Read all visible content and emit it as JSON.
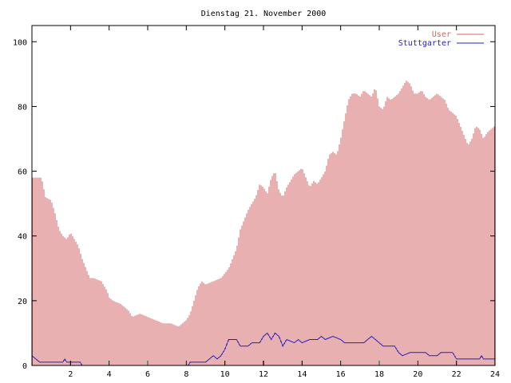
{
  "chart_data": {
    "type": "bar",
    "title": "Dienstag 21. November 2000",
    "xlabel": "",
    "ylabel": "",
    "xlim": [
      0,
      24
    ],
    "ylim": [
      0,
      105
    ],
    "x_ticks": [
      2,
      4,
      6,
      8,
      10,
      12,
      14,
      16,
      18,
      20,
      22,
      24
    ],
    "y_ticks": [
      0,
      20,
      40,
      60,
      80,
      100
    ],
    "x_tick_labels": [
      "2",
      "4",
      "6",
      "8",
      "10",
      "12",
      "14",
      "16",
      "18",
      "20",
      "22",
      "24"
    ],
    "y_tick_labels": [
      "0",
      "20",
      "40",
      "60",
      "80",
      "100"
    ],
    "legend_position": "top-right",
    "grid": false,
    "series": [
      {
        "name": "User",
        "style": "impulses",
        "color": "#d06060",
        "points": [
          [
            0.0,
            58
          ],
          [
            0.5,
            58
          ],
          [
            0.7,
            52
          ],
          [
            1.0,
            51
          ],
          [
            1.2,
            47
          ],
          [
            1.4,
            42
          ],
          [
            1.6,
            40
          ],
          [
            1.8,
            39
          ],
          [
            2.0,
            41
          ],
          [
            2.2,
            39
          ],
          [
            2.4,
            37
          ],
          [
            2.6,
            33
          ],
          [
            2.8,
            30
          ],
          [
            3.0,
            27
          ],
          [
            3.2,
            27
          ],
          [
            3.6,
            26
          ],
          [
            3.9,
            23
          ],
          [
            4.0,
            21
          ],
          [
            4.2,
            20
          ],
          [
            4.6,
            19
          ],
          [
            5.0,
            17
          ],
          [
            5.2,
            15
          ],
          [
            5.6,
            16
          ],
          [
            6.0,
            15
          ],
          [
            6.4,
            14
          ],
          [
            6.8,
            13
          ],
          [
            7.2,
            13
          ],
          [
            7.6,
            12
          ],
          [
            7.8,
            13
          ],
          [
            8.0,
            14
          ],
          [
            8.2,
            16
          ],
          [
            8.4,
            20
          ],
          [
            8.6,
            24
          ],
          [
            8.8,
            26
          ],
          [
            9.0,
            25
          ],
          [
            9.4,
            26
          ],
          [
            9.8,
            27
          ],
          [
            10.2,
            30
          ],
          [
            10.6,
            36
          ],
          [
            10.8,
            42
          ],
          [
            11.0,
            45
          ],
          [
            11.2,
            48
          ],
          [
            11.4,
            50
          ],
          [
            11.6,
            52
          ],
          [
            11.8,
            56
          ],
          [
            12.0,
            55
          ],
          [
            12.2,
            53
          ],
          [
            12.4,
            58
          ],
          [
            12.6,
            60
          ],
          [
            12.8,
            54
          ],
          [
            13.0,
            52
          ],
          [
            13.2,
            55
          ],
          [
            13.4,
            57
          ],
          [
            13.6,
            59
          ],
          [
            13.8,
            60
          ],
          [
            14.0,
            61
          ],
          [
            14.2,
            58
          ],
          [
            14.4,
            55
          ],
          [
            14.6,
            57
          ],
          [
            14.8,
            56
          ],
          [
            15.0,
            58
          ],
          [
            15.2,
            60
          ],
          [
            15.4,
            65
          ],
          [
            15.6,
            66
          ],
          [
            15.8,
            65
          ],
          [
            16.0,
            70
          ],
          [
            16.2,
            76
          ],
          [
            16.4,
            82
          ],
          [
            16.6,
            84
          ],
          [
            16.8,
            84
          ],
          [
            17.0,
            83
          ],
          [
            17.2,
            85
          ],
          [
            17.4,
            84
          ],
          [
            17.6,
            83
          ],
          [
            17.8,
            86
          ],
          [
            18.0,
            80
          ],
          [
            18.2,
            79
          ],
          [
            18.4,
            83
          ],
          [
            18.6,
            82
          ],
          [
            18.8,
            83
          ],
          [
            19.0,
            84
          ],
          [
            19.2,
            86
          ],
          [
            19.4,
            88
          ],
          [
            19.6,
            87
          ],
          [
            19.8,
            84
          ],
          [
            20.0,
            84
          ],
          [
            20.2,
            85
          ],
          [
            20.4,
            83
          ],
          [
            20.6,
            82
          ],
          [
            20.8,
            83
          ],
          [
            21.0,
            84
          ],
          [
            21.2,
            83
          ],
          [
            21.4,
            82
          ],
          [
            21.6,
            79
          ],
          [
            21.8,
            78
          ],
          [
            22.0,
            77
          ],
          [
            22.2,
            74
          ],
          [
            22.4,
            71
          ],
          [
            22.6,
            68
          ],
          [
            22.8,
            70
          ],
          [
            23.0,
            74
          ],
          [
            23.2,
            73
          ],
          [
            23.4,
            70
          ],
          [
            23.6,
            72
          ],
          [
            23.8,
            73
          ],
          [
            24.0,
            74
          ]
        ]
      },
      {
        "name": "Stuttgarter",
        "style": "line",
        "color": "#2020c0",
        "points": [
          [
            0.0,
            3
          ],
          [
            0.2,
            2
          ],
          [
            0.4,
            1
          ],
          [
            1.6,
            1
          ],
          [
            1.7,
            2
          ],
          [
            1.8,
            1
          ],
          [
            2.5,
            1
          ],
          [
            2.6,
            0
          ],
          [
            8.1,
            0
          ],
          [
            8.2,
            1
          ],
          [
            9.0,
            1
          ],
          [
            9.2,
            2
          ],
          [
            9.4,
            3
          ],
          [
            9.6,
            2
          ],
          [
            9.8,
            3
          ],
          [
            10.0,
            5
          ],
          [
            10.2,
            8
          ],
          [
            10.6,
            8
          ],
          [
            10.8,
            6
          ],
          [
            11.2,
            6
          ],
          [
            11.4,
            7
          ],
          [
            11.8,
            7
          ],
          [
            12.0,
            9
          ],
          [
            12.2,
            10
          ],
          [
            12.4,
            8
          ],
          [
            12.6,
            10
          ],
          [
            12.8,
            9
          ],
          [
            13.0,
            6
          ],
          [
            13.2,
            8
          ],
          [
            13.6,
            7
          ],
          [
            13.8,
            8
          ],
          [
            14.0,
            7
          ],
          [
            14.4,
            8
          ],
          [
            14.8,
            8
          ],
          [
            15.0,
            9
          ],
          [
            15.2,
            8
          ],
          [
            15.6,
            9
          ],
          [
            16.0,
            8
          ],
          [
            16.2,
            7
          ],
          [
            17.2,
            7
          ],
          [
            17.4,
            8
          ],
          [
            17.6,
            9
          ],
          [
            17.8,
            8
          ],
          [
            18.0,
            7
          ],
          [
            18.2,
            6
          ],
          [
            18.8,
            6
          ],
          [
            19.0,
            4
          ],
          [
            19.2,
            3
          ],
          [
            19.6,
            4
          ],
          [
            20.4,
            4
          ],
          [
            20.6,
            3
          ],
          [
            21.0,
            3
          ],
          [
            21.2,
            4
          ],
          [
            21.8,
            4
          ],
          [
            22.0,
            2
          ],
          [
            23.2,
            2
          ],
          [
            23.3,
            3
          ],
          [
            23.4,
            2
          ],
          [
            24.0,
            2
          ]
        ]
      }
    ]
  }
}
